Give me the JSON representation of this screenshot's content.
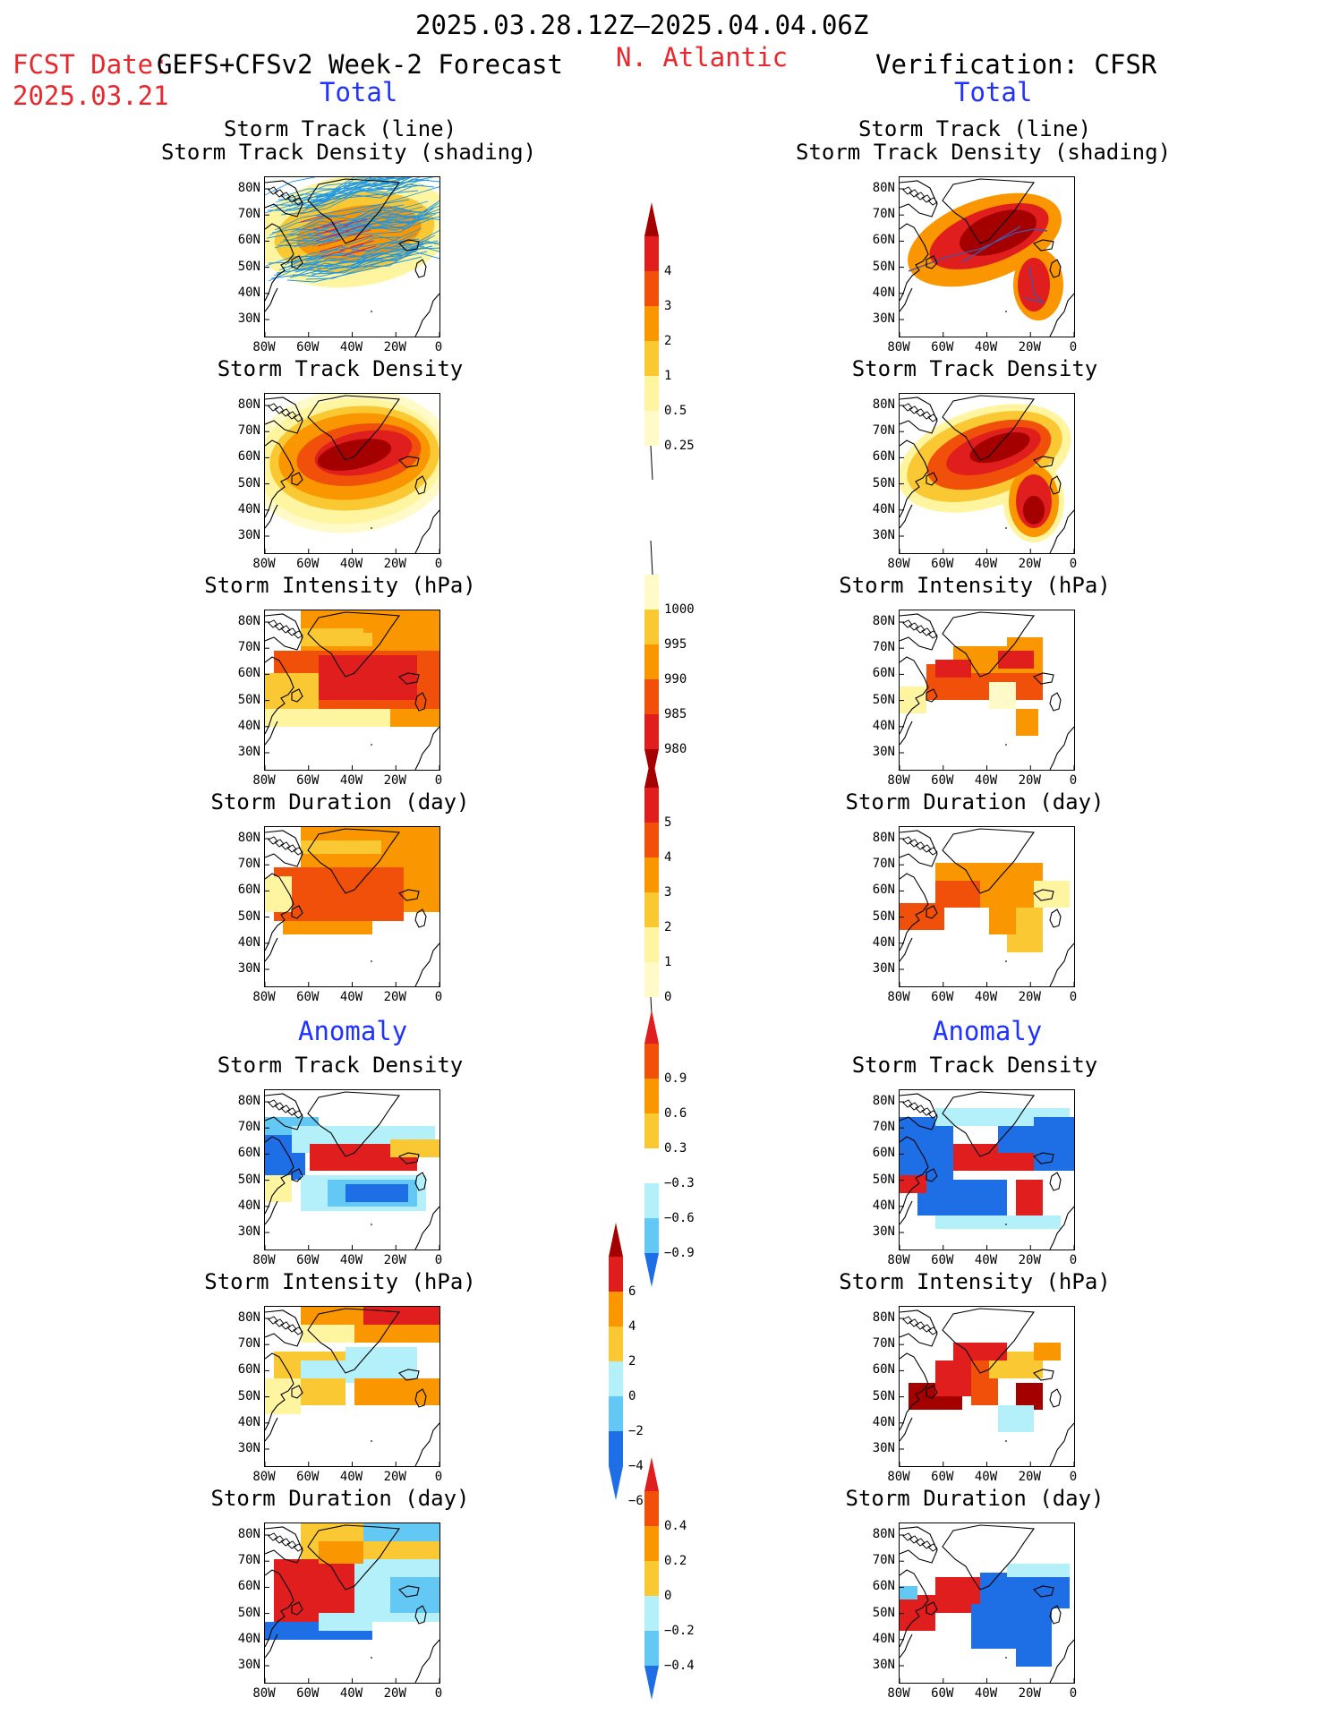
{
  "header": {
    "period": "2025.03.28.12Z–2025.04.04.06Z",
    "fcst_label": "FCST Date:",
    "fcst_date": "2025.03.21",
    "model": "GEFS+CFSv2 Week-2 Forecast",
    "region": "N. Atlantic",
    "verification": "Verification: CFSR"
  },
  "sections": {
    "total": "Total",
    "anomaly": "Anomaly"
  },
  "panel_titles": {
    "track_line": "Storm Track (line)",
    "track_density_shading": "Storm Track Density (shading)",
    "track_density": "Storm Track Density",
    "intensity": "Storm Intensity (hPa)",
    "duration": "Storm Duration (day)"
  },
  "axes": {
    "lat_labels": [
      "80N",
      "70N",
      "60N",
      "50N",
      "40N",
      "30N"
    ],
    "lon_labels": [
      "80W",
      "60W",
      "40W",
      "20W",
      "0"
    ]
  },
  "colorbars": {
    "track_density_total": [
      "4",
      "3",
      "2",
      "1",
      "0.5",
      "0.25"
    ],
    "intensity_total": [
      "1000",
      "995",
      "990",
      "985",
      "980"
    ],
    "duration_total": [
      "5",
      "4",
      "3",
      "2",
      "1",
      "0"
    ],
    "track_density_anomaly": [
      "0.9",
      "0.6",
      "0.3",
      "−0.3",
      "−0.6",
      "−0.9"
    ],
    "intensity_anomaly": [
      "6",
      "4",
      "2",
      "0",
      "−2",
      "−4",
      "−6"
    ],
    "duration_anomaly": [
      "0.4",
      "0.2",
      "0",
      "−0.2",
      "−0.4"
    ]
  },
  "colors": {
    "dark_red": "#a50000",
    "red": "#e11e1e",
    "orange_red": "#f0500a",
    "orange": "#fa9600",
    "light_orange": "#fac832",
    "yellow": "#fff5a0",
    "pale_yellow": "#fffac8",
    "white": "#ffffff",
    "light_blue": "#b4f0fa",
    "sky_blue": "#64c8f5",
    "blue": "#1e6ee6",
    "track_line": "#1e96e6",
    "track_line_dark": "#5050a0"
  }
}
